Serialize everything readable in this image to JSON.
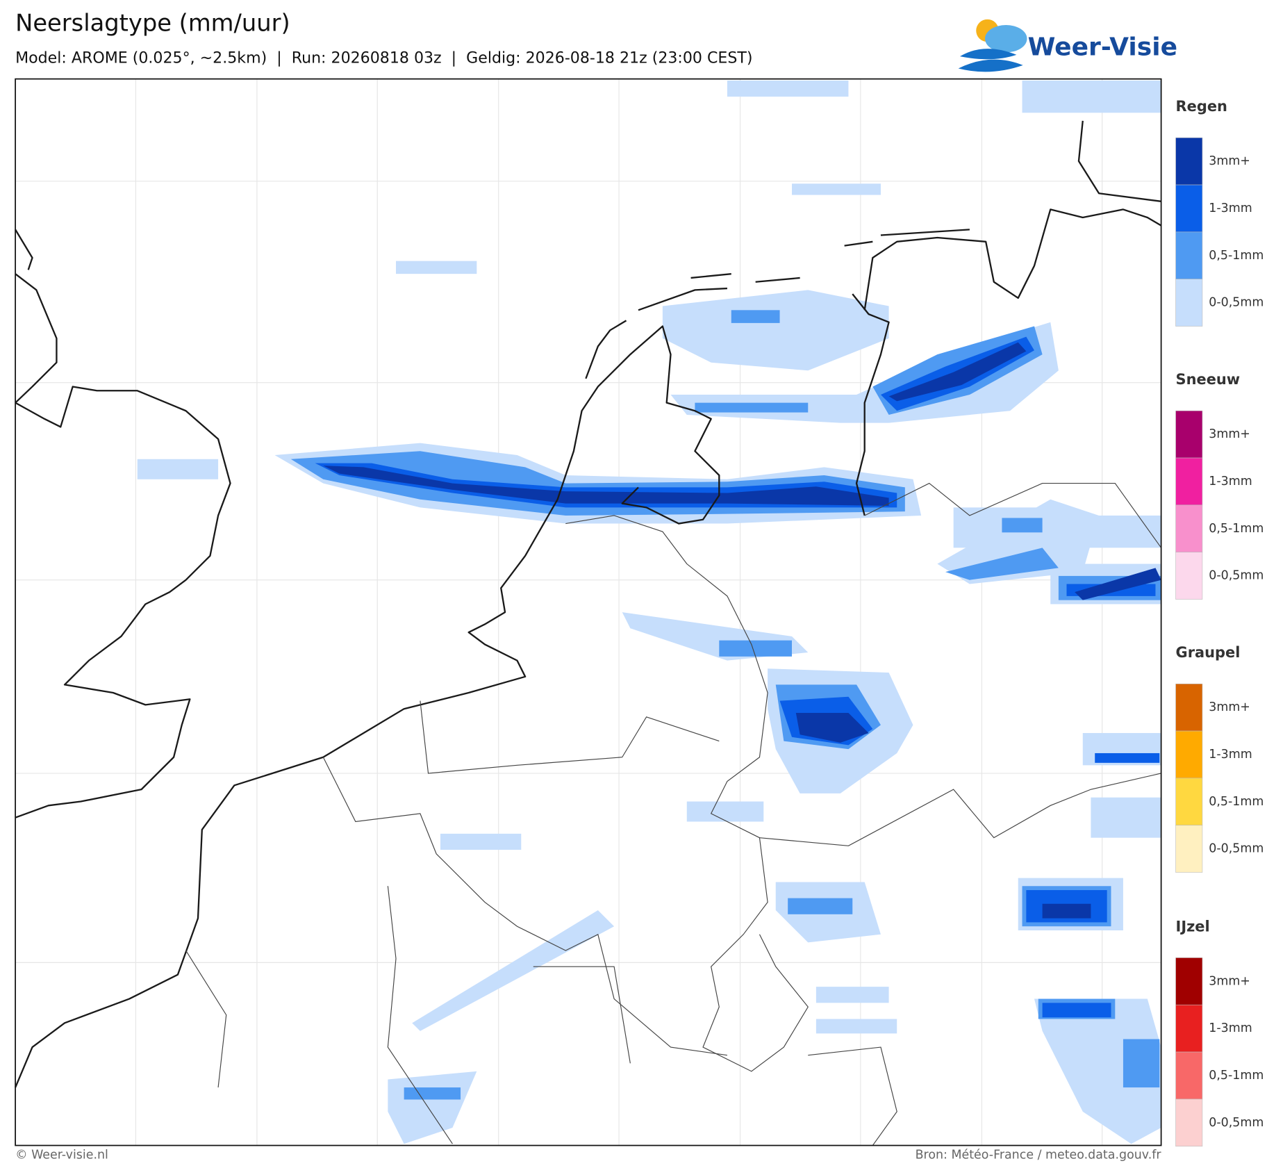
{
  "header": {
    "title": "Neerslagtype (mm/uur)",
    "subtitle": "Model: AROME (0.025°, ~2.5km)  |  Run: 20260818 03z  |  Geldig: 2026-08-18 21z (23:00 CEST)",
    "logo": "Weer-Visie"
  },
  "legend": [
    {
      "title": "Regen",
      "items": [
        {
          "label": "3mm+",
          "color": "#0a37a8"
        },
        {
          "label": "1-3mm",
          "color": "#0a5ee8"
        },
        {
          "label": "0,5-1mm",
          "color": "#4f9af2"
        },
        {
          "label": "0-0,5mm",
          "color": "#c6defc"
        }
      ]
    },
    {
      "title": "Sneeuw",
      "items": [
        {
          "label": "3mm+",
          "color": "#a8006c"
        },
        {
          "label": "1-3mm",
          "color": "#f020a0"
        },
        {
          "label": "0,5-1mm",
          "color": "#f890cc"
        },
        {
          "label": "0-0,5mm",
          "color": "#fcd8ec"
        }
      ]
    },
    {
      "title": "Graupel",
      "items": [
        {
          "label": "3mm+",
          "color": "#d86400"
        },
        {
          "label": "1-3mm",
          "color": "#ffaa00"
        },
        {
          "label": "0,5-1mm",
          "color": "#ffd840"
        },
        {
          "label": "0-0,5mm",
          "color": "#fff0c0"
        }
      ]
    },
    {
      "title": "IJzel",
      "items": [
        {
          "label": "3mm+",
          "color": "#a00000"
        },
        {
          "label": "1-3mm",
          "color": "#e82020"
        },
        {
          "label": "0,5-1mm",
          "color": "#f86868"
        },
        {
          "label": "0-0,5mm",
          "color": "#fcd0d0"
        }
      ]
    }
  ],
  "footer": {
    "left": "© Weer-visie.nl",
    "right": "Bron: Météo-France / meteo.data.gouv.fr"
  }
}
